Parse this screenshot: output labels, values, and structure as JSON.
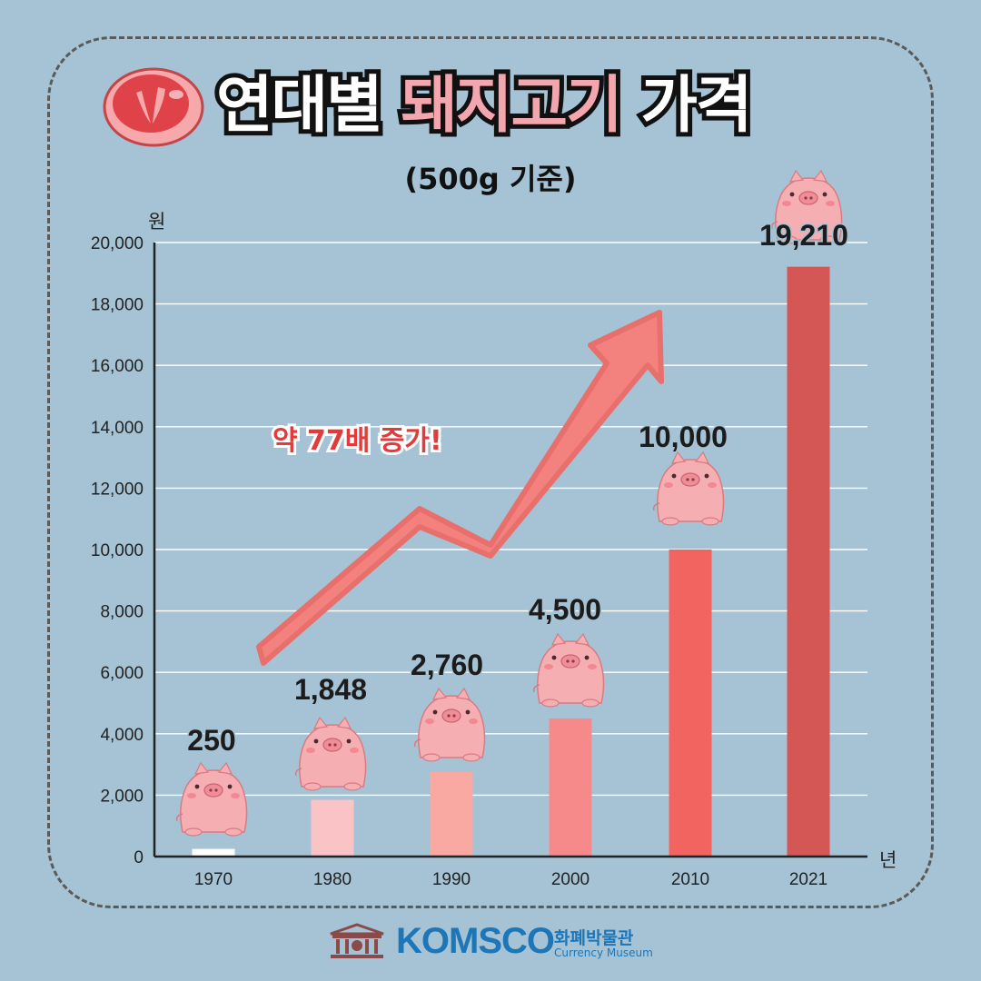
{
  "title": {
    "part1": "연대별",
    "part2": "돼지고기",
    "part3": "가격"
  },
  "subtitle": "(500g 기준)",
  "annotation": "약 77배 증가!",
  "colors": {
    "background": "#a5c3d4",
    "bar_1970": "#ffffff",
    "bar_1980": "#fac3c6",
    "bar_1990": "#f9a9a2",
    "bar_2000": "#f6898a",
    "bar_2010": "#f2645f",
    "bar_2021": "#d45655",
    "arrow": "#f3827f",
    "title_pink": "#f3a6ad",
    "brand_blue": "#1d76b8"
  },
  "chart_data": {
    "type": "bar",
    "categories": [
      "1970",
      "1980",
      "1990",
      "2000",
      "2010",
      "2021"
    ],
    "values": [
      250,
      1848,
      2760,
      4500,
      10000,
      19210
    ],
    "data_labels": [
      "250",
      "1,848",
      "2,760",
      "4,500",
      "10,000",
      "19,210"
    ],
    "ylabel": "원",
    "xlabel": "년",
    "ylim": [
      0,
      20000
    ],
    "yticks": [
      0,
      2000,
      4000,
      6000,
      8000,
      10000,
      12000,
      14000,
      16000,
      18000,
      20000
    ],
    "ytick_labels": [
      "0",
      "2,000",
      "4,000",
      "6,000",
      "8,000",
      "10,000",
      "12,000",
      "14,000",
      "16,000",
      "18,000",
      "20,000"
    ],
    "grid": true
  },
  "footer": {
    "brand": "KOMSCO",
    "brand_kr": "화폐박물관",
    "brand_en": "Currency Museum",
    "icons": [
      "museum-building-icon"
    ]
  },
  "icons": [
    "pork-meat-icon",
    "pig-icon",
    "trend-arrow-icon"
  ]
}
